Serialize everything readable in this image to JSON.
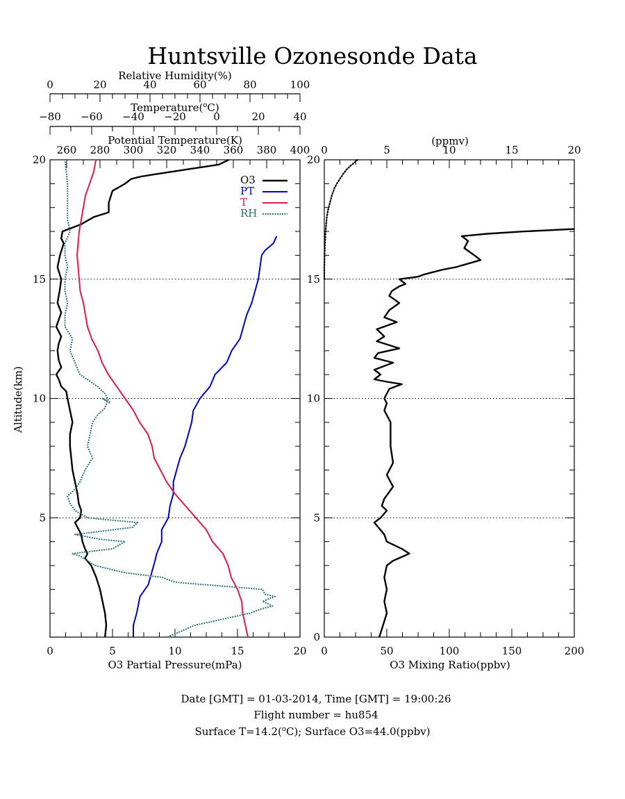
{
  "title": "Huntsville Ozonesonde Data",
  "colors": {
    "o3": "#000000",
    "pt": "#0000cc",
    "t": "#e8174a",
    "rh": "#2e7272",
    "axis": "#000000"
  },
  "footer": {
    "line1": "Date [GMT] = 01-03-2014,  Time [GMT] = 19:00:26",
    "line2": "Flight number = hu854",
    "line3_pre": "Surface T=14.2(",
    "line3_sup": "o",
    "line3_post": "C); Surface O3=44.0(ppbv)"
  },
  "chart_data": [
    {
      "type": "line",
      "title": "",
      "ylabel": "Altitude(km)",
      "ylim": [
        0,
        20
      ],
      "yticks": [
        5,
        10,
        15,
        20
      ],
      "ytick_labels": [
        "5",
        "10",
        "15",
        "20"
      ],
      "ygrid": [
        5,
        10,
        15
      ],
      "axes": {
        "o3": {
          "label": "O3 Partial Pressure(mPa)",
          "lim": [
            0,
            20
          ],
          "ticks": [
            0,
            5,
            10,
            15,
            20
          ],
          "tick_labels": [
            "0",
            "5",
            "10",
            "15",
            "20"
          ]
        },
        "pt": {
          "label": "Potential Temperature(K)",
          "lim": [
            250,
            400
          ],
          "ticks": [
            260,
            280,
            300,
            320,
            340,
            360,
            380,
            400
          ],
          "tick_labels": [
            "260",
            "280",
            "300",
            "320",
            "340",
            "360",
            "380",
            "400"
          ]
        },
        "t": {
          "label_pre": "Temperature(",
          "label_sup": "o",
          "label_post": "C)",
          "lim": [
            -80,
            40
          ],
          "ticks": [
            -80,
            -60,
            -40,
            -20,
            0,
            20,
            40
          ],
          "tick_labels": [
            "−80",
            "−60",
            "−40",
            "−20",
            "0",
            "20",
            "40"
          ]
        },
        "rh": {
          "label": "Relative Humidity(%)",
          "lim": [
            0,
            100
          ],
          "ticks": [
            0,
            20,
            40,
            60,
            80,
            100
          ],
          "tick_labels": [
            "0",
            "20",
            "40",
            "60",
            "80",
            "100"
          ]
        }
      },
      "legend": [
        "O3",
        "PT",
        "T",
        "RH"
      ],
      "legend_position": "top-right",
      "series": [
        {
          "name": "O3",
          "axis": "o3",
          "x": [
            4.4,
            4.5,
            4.4,
            4.2,
            4.0,
            3.7,
            3.3,
            2.8,
            3.0,
            2.8,
            2.6,
            2.5,
            2.2,
            2.0,
            2.4,
            2.5,
            2.3,
            2.2,
            2.0,
            1.8,
            1.7,
            1.6,
            1.6,
            1.8,
            1.6,
            1.4,
            1.3,
            0.9,
            0.7,
            0.5,
            0.9,
            0.7,
            0.6,
            0.7,
            0.9,
            0.5,
            0.7,
            0.9,
            0.6,
            0.7,
            0.8,
            0.9,
            0.6,
            0.8,
            1.1,
            0.9,
            1.0,
            2.5,
            3.5,
            4.7,
            4.7,
            5.0,
            6.0,
            6.5,
            7.3,
            8.5,
            11.0,
            13.5,
            14.3
          ],
          "y": [
            0.0,
            0.5,
            1.0,
            1.5,
            2.0,
            2.5,
            3.0,
            3.3,
            3.5,
            3.7,
            4.0,
            4.3,
            4.6,
            4.8,
            5.0,
            5.3,
            5.6,
            6.0,
            6.5,
            7.0,
            7.5,
            8.0,
            8.5,
            9.0,
            9.5,
            10.0,
            10.3,
            10.5,
            10.8,
            11.0,
            11.3,
            11.6,
            12.0,
            12.3,
            12.6,
            13.0,
            13.3,
            13.6,
            14.0,
            14.3,
            14.6,
            15.0,
            15.5,
            16.0,
            16.5,
            16.7,
            17.0,
            17.3,
            17.6,
            17.8,
            18.2,
            18.7,
            19.0,
            19.2,
            19.3,
            19.4,
            19.6,
            19.8,
            20.0
          ]
        },
        {
          "name": "PT",
          "axis": "pt",
          "x": [
            300,
            300,
            302,
            304,
            309,
            311,
            313,
            314,
            317,
            317,
            321,
            322,
            324,
            324,
            326,
            328,
            331,
            333,
            335,
            336,
            340,
            346,
            349,
            356,
            359,
            364,
            366,
            368,
            371,
            373,
            375,
            376,
            377,
            379,
            384,
            386
          ],
          "y": [
            0.0,
            0.5,
            1.0,
            1.7,
            2.2,
            2.7,
            3.2,
            3.5,
            4.0,
            4.5,
            5.0,
            5.5,
            6.0,
            6.5,
            7.0,
            7.5,
            8.0,
            8.5,
            9.0,
            9.5,
            10.0,
            10.5,
            11.0,
            11.5,
            12.0,
            12.5,
            13.0,
            13.5,
            14.0,
            14.5,
            15.0,
            15.5,
            16.0,
            16.2,
            16.5,
            16.8
          ]
        },
        {
          "name": "T",
          "axis": "t",
          "x": [
            15.0,
            12.5,
            12.0,
            10.0,
            7.0,
            5.5,
            3.0,
            -2.0,
            -5.0,
            -10.0,
            -15.0,
            -20.0,
            -24.0,
            -27.0,
            -30.0,
            -31.0,
            -33.0,
            -37.0,
            -40.0,
            -44.0,
            -48.0,
            -52.0,
            -55.0,
            -57.0,
            -60.0,
            -62.0,
            -63.0,
            -64.0,
            -65.5,
            -66.0,
            -67.0,
            -66.0,
            -64.0,
            -63.0,
            -61.0,
            -59.0,
            -58.0
          ],
          "y": [
            0.0,
            1.0,
            1.5,
            2.0,
            2.5,
            3.0,
            3.5,
            4.0,
            4.5,
            5.0,
            5.5,
            6.0,
            6.5,
            7.0,
            7.5,
            8.0,
            8.5,
            9.0,
            9.5,
            10.0,
            10.5,
            11.0,
            11.5,
            12.0,
            12.5,
            13.0,
            13.5,
            14.0,
            14.5,
            15.0,
            16.0,
            17.0,
            18.0,
            18.5,
            19.0,
            19.5,
            20.0
          ]
        },
        {
          "name": "RH",
          "axis": "rh",
          "x": [
            47,
            58,
            80,
            85,
            89,
            85,
            90,
            86,
            85,
            50,
            45,
            30,
            18,
            15,
            12,
            9,
            25,
            30,
            20,
            10,
            33,
            35,
            15,
            10,
            8,
            7,
            10,
            12,
            14,
            17,
            15,
            16,
            17,
            19,
            22,
            23,
            21,
            24,
            22,
            19,
            12,
            10,
            8,
            9,
            6,
            6,
            7,
            6,
            6,
            7,
            6,
            6,
            8,
            7,
            7,
            7,
            6
          ],
          "y": [
            0.0,
            0.5,
            1.0,
            1.2,
            1.3,
            1.5,
            1.7,
            1.8,
            2.0,
            2.3,
            2.5,
            2.7,
            3.0,
            3.2,
            3.4,
            3.5,
            3.7,
            4.0,
            4.1,
            4.3,
            4.6,
            4.8,
            5.0,
            5.3,
            5.6,
            5.9,
            6.2,
            6.5,
            7.0,
            7.5,
            8.0,
            8.5,
            9.0,
            9.3,
            9.6,
            9.9,
            10.0,
            9.8,
            10.2,
            10.5,
            11.0,
            11.5,
            12.0,
            12.5,
            13.0,
            13.5,
            14.0,
            14.5,
            15.0,
            15.5,
            16.0,
            16.5,
            17.0,
            17.5,
            18.0,
            19.0,
            20.0
          ]
        }
      ]
    },
    {
      "type": "line",
      "title": "",
      "xlabel": "O3 Mixing Ratio(ppbv)",
      "xlim": [
        0,
        200
      ],
      "xticks": [
        0,
        50,
        100,
        150,
        200
      ],
      "xtick_labels": [
        "0",
        "50",
        "100",
        "150",
        "200"
      ],
      "x2label": "(ppmv)",
      "x2lim": [
        0,
        20
      ],
      "x2ticks": [
        0,
        5,
        10,
        15,
        20
      ],
      "x2tick_labels": [
        "0",
        "5",
        "10",
        "15",
        "20"
      ],
      "ylim": [
        0,
        20
      ],
      "yticks": [
        0,
        5,
        10,
        15,
        20
      ],
      "ytick_labels": [
        "0",
        "5",
        "10",
        "15",
        "20"
      ],
      "ygrid": [
        5,
        10,
        15
      ],
      "series": [
        {
          "name": "",
          "axis": "ppbv",
          "style": "solid",
          "x": [
            44,
            47,
            50,
            48,
            50,
            48,
            50,
            55,
            68,
            62,
            50,
            48,
            40,
            45,
            50,
            46,
            48,
            55,
            50,
            55,
            53,
            53,
            48,
            50,
            48,
            52,
            62,
            50,
            40,
            45,
            40,
            55,
            40,
            43,
            60,
            42,
            48,
            42,
            58,
            48,
            52,
            60,
            52,
            54,
            60,
            65,
            60,
            75,
            80,
            95,
            105,
            125,
            120,
            112,
            115,
            110,
            130,
            160,
            200
          ],
          "y": [
            0.0,
            0.5,
            1.0,
            1.5,
            2.0,
            2.5,
            3.0,
            3.2,
            3.5,
            3.7,
            4.0,
            4.3,
            4.8,
            5.0,
            5.3,
            5.5,
            5.8,
            6.3,
            6.8,
            7.3,
            8.0,
            9.0,
            9.5,
            9.8,
            10.0,
            10.4,
            10.6,
            10.7,
            10.8,
            11.0,
            11.2,
            11.5,
            11.7,
            11.9,
            12.1,
            12.4,
            12.6,
            12.9,
            13.2,
            13.4,
            13.7,
            14.0,
            14.3,
            14.5,
            14.7,
            14.8,
            15.0,
            15.1,
            15.2,
            15.4,
            15.5,
            15.8,
            16.0,
            16.3,
            16.6,
            16.8,
            16.9,
            17.0,
            17.1
          ]
        },
        {
          "name": "",
          "axis": "ppmv",
          "style": "dotted",
          "x": [
            0.0,
            0.0,
            0.02,
            0.05,
            0.1,
            0.15,
            0.2,
            0.3,
            0.45,
            0.6,
            0.8,
            1.0,
            1.25,
            1.5,
            1.8,
            2.1,
            2.4,
            2.65
          ],
          "y": [
            15.0,
            15.5,
            16.0,
            16.5,
            17.0,
            17.3,
            17.6,
            17.9,
            18.2,
            18.5,
            18.8,
            19.0,
            19.2,
            19.4,
            19.6,
            19.75,
            19.88,
            20.0
          ]
        }
      ]
    }
  ]
}
